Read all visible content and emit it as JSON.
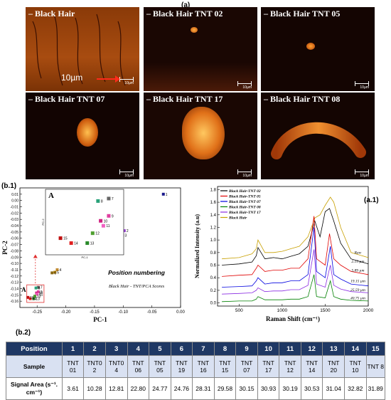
{
  "panel_labels": {
    "a": "(a)",
    "b1": "(b.1)",
    "a1": "(a.1)",
    "b2": "(b.2)"
  },
  "micrographs": [
    {
      "title": "– Black Hair",
      "scale": "10µm"
    },
    {
      "title": "– Black Hair TNT 02",
      "scale": "10µm"
    },
    {
      "title": "– Black Hair TNT 05",
      "scale": "10µm"
    },
    {
      "title": "– Black Hair TNT 07",
      "scale": "10µm"
    },
    {
      "title": "– Black Hair TNT 17",
      "scale": "10µm"
    },
    {
      "title": "– Black Hair TNT 08",
      "scale": "10µm"
    }
  ],
  "big_scale_label": "10µm",
  "chart_data": [
    {
      "type": "scatter",
      "xlabel": "PC-1",
      "ylabel": "PC-2",
      "xlim": [
        -0.28,
        0.0
      ],
      "ylim": [
        -0.17,
        0.02
      ],
      "x_ticks": [
        "-0.25",
        "-0.20",
        "-0.15",
        "-0.10",
        "-0.05",
        "0.00"
      ],
      "y_ticks": [
        "0.01",
        "0.00",
        "-0.01",
        "-0.02",
        "-0.03",
        "-0.04",
        "-0.05",
        "-0.06",
        "-0.07",
        "-0.08",
        "-0.09",
        "-0.10",
        "-0.11",
        "-0.12",
        "-0.13",
        "-0.14",
        "-0.15",
        "-0.16"
      ],
      "annotation_title": "Position numbering",
      "annotation_subtitle": "Black Hair - TNT/PCA Scores",
      "inset_label": "A",
      "inset_xlabel": "PC-1",
      "inset_ylabel": "PC-2",
      "points": [
        {
          "label": "1",
          "x": -0.03,
          "y": 0.01,
          "color": "#1a1a8c"
        },
        {
          "label": "2",
          "x": -0.098,
          "y": -0.048,
          "color": "#9a4ad0"
        },
        {
          "label": "3",
          "x": -0.101,
          "y": -0.055,
          "color": "#c080e0"
        },
        {
          "label": "4",
          "x": -0.215,
          "y": -0.11,
          "color": "#c08a30"
        },
        {
          "label": "5",
          "x": -0.219,
          "y": -0.114,
          "color": "#b8860b"
        },
        {
          "label": "6",
          "x": -0.224,
          "y": -0.115,
          "color": "#8b6914"
        },
        {
          "label": "7",
          "x": -0.248,
          "y": -0.138,
          "color": "#666666"
        },
        {
          "label": "8",
          "x": -0.252,
          "y": -0.139,
          "color": "#2aa27a"
        },
        {
          "label": "9",
          "x": -0.248,
          "y": -0.145,
          "color": "#e040a0"
        },
        {
          "label": "10",
          "x": -0.251,
          "y": -0.147,
          "color": "#d02080"
        },
        {
          "label": "11",
          "x": -0.25,
          "y": -0.149,
          "color": "#f060c0"
        },
        {
          "label": "12",
          "x": -0.254,
          "y": -0.152,
          "color": "#50a030"
        },
        {
          "label": "13",
          "x": -0.256,
          "y": -0.156,
          "color": "#2a8a2a"
        },
        {
          "label": "14",
          "x": -0.262,
          "y": -0.156,
          "color": "#e02020"
        },
        {
          "label": "15",
          "x": -0.266,
          "y": -0.154,
          "color": "#c01010"
        }
      ]
    },
    {
      "type": "line",
      "xlabel": "Raman Shift (cm⁻¹)",
      "ylabel": "Normalized Intensity (a.u)",
      "xlim": [
        250,
        2000
      ],
      "ylim": [
        -0.05,
        1.85
      ],
      "x_ticks": [
        "500",
        "1000",
        "1500",
        "2000"
      ],
      "y_ticks": [
        "0.0",
        "0.2",
        "0.4",
        "0.6",
        "0.8",
        "1.0",
        "1.2",
        "1.4",
        "1.6",
        "1.8"
      ],
      "legend": [
        {
          "name": "Black Hair-TNT 02",
          "color": "#000000"
        },
        {
          "name": "Black Hair-TNT 05",
          "color": "#e00000"
        },
        {
          "name": "Black Hair-TNT 07",
          "color": "#0000e0"
        },
        {
          "name": "Black Hair-TNT 08",
          "color": "#008000"
        },
        {
          "name": "Black Hair-TNT 17",
          "color": "#8a2be2"
        },
        {
          "name": "Black Hair",
          "color": "#c8a000"
        }
      ],
      "curve_labels": [
        "Raw",
        "2.15 µm",
        "5.89 µm",
        "19.15 µm",
        "25.59 µm",
        "40.75 µm"
      ],
      "series": [
        {
          "name": "Black Hair",
          "color": "#c8a000",
          "x": [
            300,
            500,
            650,
            700,
            720,
            800,
            900,
            1000,
            1100,
            1200,
            1300,
            1380,
            1440,
            1500,
            1560,
            1600,
            1680,
            1800,
            2000
          ],
          "values": [
            0.7,
            0.72,
            0.78,
            0.86,
            1.0,
            0.8,
            0.8,
            0.82,
            0.86,
            0.9,
            1.05,
            1.35,
            1.4,
            1.55,
            1.68,
            1.6,
            1.2,
            0.8,
            0.72
          ]
        },
        {
          "name": "Black Hair-TNT 02",
          "color": "#000000",
          "x": [
            300,
            500,
            650,
            700,
            720,
            800,
            900,
            1000,
            1100,
            1200,
            1300,
            1380,
            1440,
            1500,
            1550,
            1600,
            1680,
            1800,
            2000
          ],
          "values": [
            0.6,
            0.62,
            0.65,
            0.75,
            0.88,
            0.7,
            0.72,
            0.7,
            0.74,
            0.78,
            0.9,
            1.3,
            1.05,
            1.45,
            1.5,
            1.3,
            0.95,
            0.7,
            0.62
          ]
        },
        {
          "name": "Black Hair-TNT 05",
          "color": "#e00000",
          "x": [
            300,
            500,
            650,
            700,
            720,
            800,
            900,
            1000,
            1100,
            1200,
            1300,
            1370,
            1400,
            1500,
            1550,
            1600,
            1680,
            1800,
            2000
          ],
          "values": [
            0.42,
            0.44,
            0.45,
            0.55,
            0.6,
            0.5,
            0.52,
            0.52,
            0.55,
            0.55,
            0.7,
            1.38,
            0.7,
            0.6,
            1.1,
            0.7,
            0.6,
            0.5,
            0.45
          ]
        },
        {
          "name": "Black Hair-TNT 07",
          "color": "#0000e0",
          "x": [
            300,
            500,
            650,
            700,
            720,
            800,
            900,
            1000,
            1100,
            1200,
            1300,
            1370,
            1400,
            1500,
            1560,
            1600,
            1680,
            1800,
            2000
          ],
          "values": [
            0.25,
            0.26,
            0.27,
            0.35,
            0.4,
            0.3,
            0.32,
            0.32,
            0.35,
            0.35,
            0.45,
            1.2,
            0.5,
            0.4,
            0.9,
            0.45,
            0.38,
            0.3,
            0.27
          ]
        },
        {
          "name": "Black Hair-TNT 17",
          "color": "#8a2be2",
          "x": [
            300,
            500,
            650,
            700,
            720,
            800,
            900,
            1000,
            1100,
            1200,
            1300,
            1370,
            1400,
            1500,
            1560,
            1600,
            1680,
            1800,
            2000
          ],
          "values": [
            0.14,
            0.15,
            0.16,
            0.2,
            0.24,
            0.18,
            0.19,
            0.19,
            0.21,
            0.21,
            0.28,
            0.85,
            0.3,
            0.25,
            0.6,
            0.28,
            0.22,
            0.18,
            0.16
          ]
        },
        {
          "name": "Black Hair-TNT 08",
          "color": "#008000",
          "x": [
            300,
            500,
            650,
            700,
            720,
            800,
            900,
            1000,
            1100,
            1200,
            1300,
            1370,
            1400,
            1500,
            1560,
            1600,
            1680,
            1800,
            2000
          ],
          "values": [
            0.02,
            0.03,
            0.03,
            0.06,
            0.1,
            0.05,
            0.05,
            0.05,
            0.06,
            0.06,
            0.1,
            0.45,
            0.1,
            0.08,
            0.35,
            0.1,
            0.06,
            0.04,
            0.03
          ]
        }
      ]
    }
  ],
  "table": {
    "row_headers": [
      "Position",
      "Sample",
      "Signal Area (s⁻¹. cm⁻¹)"
    ],
    "positions": [
      "1",
      "2",
      "3",
      "4",
      "5",
      "6",
      "7",
      "8",
      "9",
      "10",
      "11",
      "12",
      "13",
      "14",
      "15"
    ],
    "samples": [
      "TNT 01",
      "TNT0 2",
      "TNT0 4",
      "TNT 06",
      "TNT 05",
      "TNT 19",
      "TNT 16",
      "TNT 15",
      "TNT 07",
      "TNT 17",
      "TNT 12",
      "TNT 14",
      "TNT 20",
      "TNT 10",
      "TNT 8"
    ],
    "signal_areas": [
      "3.61",
      "10.28",
      "12.81",
      "22.80",
      "24.77",
      "24.76",
      "28.31",
      "29.58",
      "30.15",
      "30.93",
      "30.19",
      "30.53",
      "31.04",
      "32.82",
      "31.89"
    ]
  }
}
